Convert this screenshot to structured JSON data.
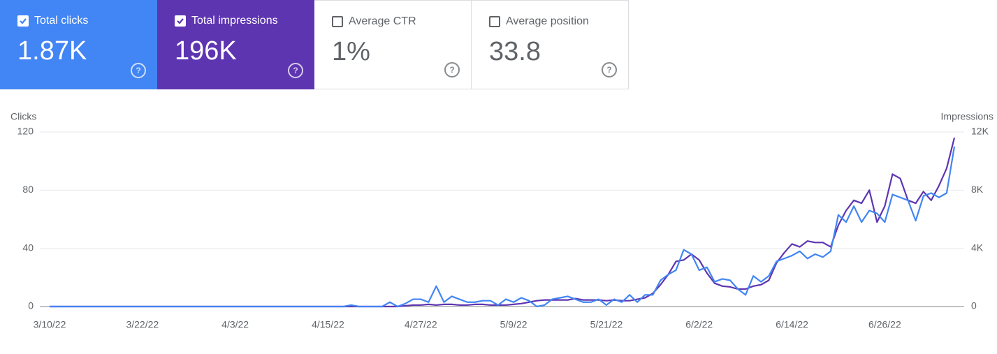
{
  "cards": [
    {
      "label": "Total clicks",
      "value": "1.87K",
      "checked": true,
      "color": "#4285f4"
    },
    {
      "label": "Total impressions",
      "value": "196K",
      "checked": true,
      "color": "#5e35b1"
    },
    {
      "label": "Average CTR",
      "value": "1%",
      "checked": false
    },
    {
      "label": "Average position",
      "value": "33.8",
      "checked": false
    }
  ],
  "chart_data": {
    "type": "line",
    "y_label": "Clicks",
    "y2_label": "Impressions",
    "categories": [
      "3/10/22",
      null,
      null,
      null,
      null,
      null,
      null,
      null,
      null,
      null,
      null,
      null,
      "3/22/22",
      null,
      null,
      null,
      null,
      null,
      null,
      null,
      null,
      null,
      null,
      null,
      "4/3/22",
      null,
      null,
      null,
      null,
      null,
      null,
      null,
      null,
      null,
      null,
      null,
      "4/15/22",
      null,
      null,
      null,
      null,
      null,
      null,
      null,
      null,
      null,
      null,
      null,
      "4/27/22",
      null,
      null,
      null,
      null,
      null,
      null,
      null,
      null,
      null,
      null,
      null,
      "5/9/22",
      null,
      null,
      null,
      null,
      null,
      null,
      null,
      null,
      null,
      null,
      null,
      "5/21/22",
      null,
      null,
      null,
      null,
      null,
      null,
      null,
      null,
      null,
      null,
      null,
      "6/2/22",
      null,
      null,
      null,
      null,
      null,
      null,
      null,
      null,
      null,
      null,
      null,
      "6/14/22",
      null,
      null,
      null,
      null,
      null,
      null,
      null,
      null,
      null,
      null,
      null,
      "6/26/22",
      null,
      null,
      null,
      null,
      null,
      null,
      null,
      null,
      null
    ],
    "series": [
      {
        "name": "Clicks",
        "color": "#4285f4",
        "values": [
          0,
          0,
          0,
          0,
          0,
          0,
          0,
          0,
          0,
          0,
          0,
          0,
          0,
          0,
          0,
          0,
          0,
          0,
          0,
          0,
          0,
          0,
          0,
          0,
          0,
          0,
          0,
          0,
          0,
          0,
          0,
          0,
          0,
          0,
          0,
          0,
          0,
          0,
          0,
          1,
          0,
          0,
          0,
          0,
          3,
          0,
          2,
          5,
          5,
          3,
          14,
          3,
          7,
          5,
          3,
          3,
          4,
          4,
          1,
          5,
          3,
          6,
          4,
          0,
          1,
          5,
          6,
          7,
          5,
          3,
          3,
          5,
          1,
          5,
          3,
          8,
          3,
          8,
          8,
          18,
          22,
          25,
          39,
          36,
          25,
          27,
          17,
          19,
          18,
          12,
          8,
          21,
          17,
          21,
          31,
          33,
          35,
          38,
          33,
          36,
          34,
          38,
          63,
          58,
          69,
          58,
          66,
          64,
          58,
          77,
          75,
          73,
          59,
          76,
          78,
          75,
          78,
          110
        ]
      },
      {
        "name": "Impressions",
        "color": "#5e35b1",
        "axis": "y2",
        "values": [
          0,
          0,
          0,
          0,
          0,
          0,
          0,
          0,
          0,
          0,
          0,
          0,
          0,
          0,
          0,
          0,
          0,
          0,
          0,
          0,
          0,
          0,
          0,
          0,
          0,
          0,
          0,
          0,
          0,
          0,
          0,
          0,
          0,
          0,
          0,
          0,
          0,
          0,
          0,
          0,
          0,
          0,
          0,
          0,
          0,
          0,
          50,
          100,
          100,
          150,
          100,
          150,
          150,
          100,
          100,
          150,
          150,
          100,
          100,
          100,
          150,
          200,
          300,
          400,
          450,
          450,
          450,
          450,
          550,
          450,
          450,
          450,
          400,
          450,
          400,
          400,
          500,
          600,
          900,
          1500,
          2200,
          3100,
          3200,
          3600,
          3200,
          2300,
          1600,
          1400,
          1350,
          1200,
          1200,
          1400,
          1500,
          1800,
          3000,
          3700,
          4300,
          4100,
          4500,
          4400,
          4400,
          4100,
          5600,
          6600,
          7300,
          7100,
          8000,
          5800,
          6900,
          9100,
          8800,
          7300,
          7100,
          7900,
          7300,
          8300,
          9500,
          11600
        ]
      }
    ],
    "ylim": [
      0,
      120
    ],
    "yticks": [
      0,
      40,
      80,
      120
    ],
    "y2lim": [
      0,
      12000
    ],
    "y2ticks": [
      0,
      {
        "value": 4000,
        "label": "4K"
      },
      {
        "value": 8000,
        "label": "8K"
      },
      {
        "value": 12000,
        "label": "12K"
      }
    ],
    "grid": true
  }
}
